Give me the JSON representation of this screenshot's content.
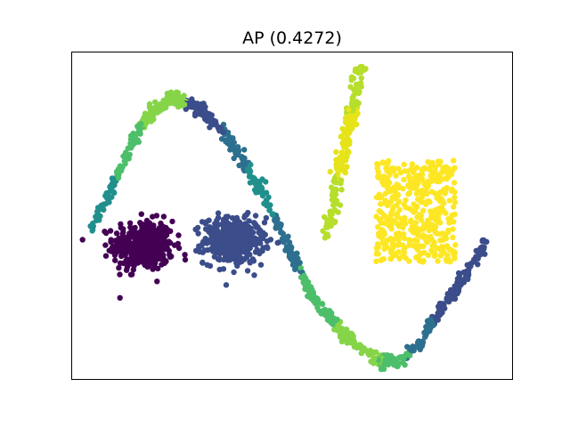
{
  "chart_data": {
    "type": "scatter",
    "title": "AP (0.4272)",
    "xlabel": "",
    "ylabel": "",
    "axes_ticks": false,
    "grid": false,
    "legend": "none",
    "xlim": [
      0,
      100
    ],
    "ylim": [
      0,
      100
    ],
    "colors": {
      "c0": "#440154",
      "c1": "#3b4d8a",
      "c2": "#2d6f8e",
      "c3": "#21908c",
      "c4": "#4dbf6a",
      "c5": "#86d549",
      "c6": "#b6de2b",
      "c7": "#e6e419",
      "c8": "#fde725"
    },
    "series": [
      {
        "shape": "blob",
        "center": [
          16.3,
          41.0
        ],
        "spread": [
          3.4,
          3.8
        ],
        "count": 430,
        "color": "c0"
      },
      {
        "shape": "blob",
        "center": [
          36.8,
          42.5
        ],
        "spread": [
          3.4,
          3.5
        ],
        "count": 430,
        "color": "c1"
      },
      {
        "shape": "curve",
        "points": [
          [
            4.8,
            45.5
          ],
          [
            8.0,
            56.0
          ],
          [
            11.0,
            65.0
          ],
          [
            14.0,
            73.0
          ],
          [
            17.0,
            79.5
          ],
          [
            20.0,
            83.5
          ],
          [
            23.0,
            86.0
          ],
          [
            26.7,
            84.5
          ],
          [
            30.0,
            82.0
          ],
          [
            34.0,
            76.0
          ],
          [
            38.0,
            69.0
          ],
          [
            42.0,
            60.0
          ],
          [
            46.0,
            50.0
          ],
          [
            50.0,
            38.0
          ],
          [
            54.0,
            27.0
          ],
          [
            58.0,
            20.0
          ],
          [
            62.0,
            14.0
          ],
          [
            66.0,
            9.0
          ],
          [
            70.0,
            5.5
          ],
          [
            74.0,
            6.0
          ],
          [
            78.0,
            10.0
          ],
          [
            82.0,
            18.0
          ],
          [
            86.0,
            26.0
          ],
          [
            90.0,
            34.0
          ],
          [
            94.0,
            42.0
          ]
        ],
        "jitter": 1.0,
        "count": 900,
        "color_ranges": [
          [
            4.8,
            10.0,
            "c3"
          ],
          [
            10.0,
            16.0,
            "c4"
          ],
          [
            16.0,
            26.0,
            "c5"
          ],
          [
            26.0,
            34.0,
            "c1"
          ],
          [
            34.0,
            40.0,
            "c2"
          ],
          [
            40.0,
            46.0,
            "c3"
          ],
          [
            46.0,
            52.0,
            "c2"
          ],
          [
            52.0,
            60.0,
            "c4"
          ],
          [
            60.0,
            70.0,
            "c5"
          ],
          [
            70.0,
            76.0,
            "c4"
          ],
          [
            76.0,
            82.0,
            "c2"
          ],
          [
            82.0,
            94.0,
            "c1"
          ]
        ]
      },
      {
        "shape": "band",
        "start": [
          57.5,
          43.5
        ],
        "end": [
          65.5,
          95.5
        ],
        "width": 1.4,
        "count": 180,
        "color_ranges": [
          [
            0.0,
            0.35,
            "c6"
          ],
          [
            0.35,
            0.75,
            "c7"
          ],
          [
            0.75,
            1.0,
            "c6"
          ]
        ]
      },
      {
        "shape": "box",
        "x_range": [
          69.0,
          87.0
        ],
        "y_range": [
          36.0,
          67.0
        ],
        "count": 450,
        "color": "c8"
      }
    ]
  }
}
